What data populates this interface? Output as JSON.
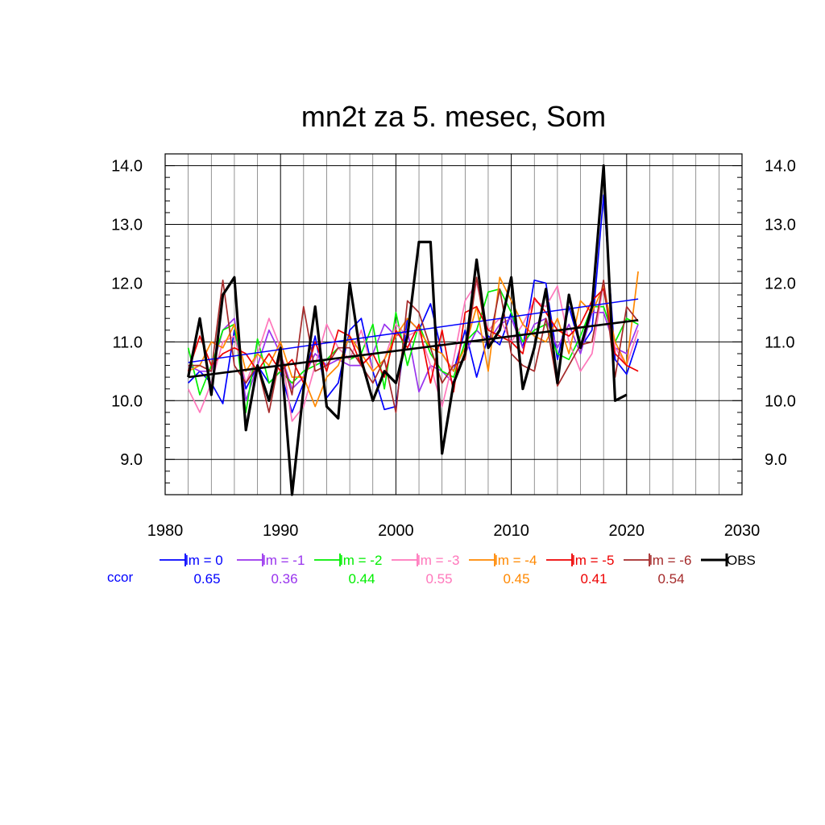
{
  "chart_data": {
    "type": "line",
    "title": "mn2t za 5. mesec, Som",
    "xlim": [
      1980,
      2030
    ],
    "ylim": [
      8.4,
      14.2
    ],
    "x_ticks": [
      "1980",
      "1990",
      "2000",
      "2010",
      "2020",
      "2030"
    ],
    "y_ticks": [
      "9.0",
      "10.0",
      "11.0",
      "12.0",
      "13.0",
      "14.0"
    ],
    "grid": true,
    "legend_position": "bottom",
    "ccor_label": "ccor",
    "series": [
      {
        "name": "lm = 0",
        "color": "#0000ff",
        "ccor": "0.65",
        "x": [
          1982,
          1983,
          1984,
          1985,
          1986,
          1987,
          1988,
          1989,
          1990,
          1991,
          1992,
          1993,
          1994,
          1995,
          1996,
          1997,
          1998,
          1999,
          2000,
          2001,
          2002,
          2003,
          2004,
          2005,
          2006,
          2007,
          2008,
          2009,
          2010,
          2011,
          2012,
          2013,
          2014,
          2015,
          2016,
          2017,
          2018,
          2019,
          2020,
          2021
        ],
        "y": [
          10.3,
          10.5,
          10.3,
          9.95,
          11.2,
          10.2,
          10.6,
          10.3,
          10.5,
          9.8,
          10.3,
          11.1,
          10.05,
          10.3,
          11.2,
          11.4,
          10.5,
          9.85,
          9.9,
          11.4,
          11.2,
          11.65,
          10.8,
          10.5,
          11.2,
          10.4,
          11.1,
          10.95,
          11.5,
          10.9,
          12.05,
          12.0,
          10.7,
          11.6,
          10.9,
          11.2,
          13.5,
          10.7,
          10.45,
          11.05
        ],
        "trend": [
          10.65,
          11.73
        ]
      },
      {
        "name": "lm = -1",
        "color": "#9933ee",
        "ccor": "0.36",
        "x": [
          1982,
          1983,
          1984,
          1985,
          1986,
          1987,
          1988,
          1989,
          1990,
          1991,
          1992,
          1993,
          1994,
          1995,
          1996,
          1997,
          1998,
          1999,
          2000,
          2001,
          2002,
          2003,
          2004,
          2005,
          2006,
          2007,
          2008,
          2009,
          2010,
          2011,
          2012,
          2013,
          2014,
          2015,
          2016,
          2017,
          2018,
          2019,
          2020,
          2021
        ],
        "y": [
          10.6,
          10.5,
          10.5,
          11.2,
          11.4,
          10.0,
          10.6,
          11.2,
          10.8,
          10.2,
          10.4,
          10.8,
          10.6,
          10.7,
          10.6,
          10.6,
          10.8,
          11.3,
          11.1,
          11.2,
          10.15,
          10.6,
          10.5,
          10.3,
          10.8,
          11.2,
          11.0,
          11.3,
          11.4,
          10.9,
          11.3,
          11.4,
          10.9,
          11.3,
          10.8,
          11.5,
          11.5,
          10.9,
          10.8,
          11.3
        ]
      },
      {
        "name": "lm = -2",
        "color": "#00ee00",
        "ccor": "0.44",
        "x": [
          1982,
          1983,
          1984,
          1985,
          1986,
          1987,
          1988,
          1989,
          1990,
          1991,
          1992,
          1993,
          1994,
          1995,
          1996,
          1997,
          1998,
          1999,
          2000,
          2001,
          2002,
          2003,
          2004,
          2005,
          2006,
          2007,
          2008,
          2009,
          2010,
          2011,
          2012,
          2013,
          2014,
          2015,
          2016,
          2017,
          2018,
          2019,
          2020,
          2021
        ],
        "y": [
          10.9,
          10.1,
          10.6,
          11.2,
          11.3,
          9.8,
          11.05,
          10.3,
          10.5,
          10.3,
          10.5,
          10.6,
          10.7,
          10.9,
          10.7,
          10.8,
          11.3,
          10.2,
          11.5,
          10.6,
          11.3,
          10.8,
          10.5,
          10.4,
          11.0,
          11.2,
          11.85,
          11.9,
          11.5,
          11.0,
          11.2,
          11.3,
          10.8,
          10.7,
          11.1,
          11.6,
          11.6,
          11.0,
          11.4,
          11.3
        ]
      },
      {
        "name": "lm = -3",
        "color": "#ff77bb",
        "ccor": "0.55",
        "x": [
          1982,
          1983,
          1984,
          1985,
          1986,
          1987,
          1988,
          1989,
          1990,
          1991,
          1992,
          1993,
          1994,
          1995,
          1996,
          1997,
          1998,
          1999,
          2000,
          2001,
          2002,
          2003,
          2004,
          2005,
          2006,
          2007,
          2008,
          2009,
          2010,
          2011,
          2012,
          2013,
          2014,
          2015,
          2016,
          2017,
          2018,
          2019,
          2020,
          2021
        ],
        "y": [
          10.2,
          9.8,
          10.3,
          11.0,
          11.1,
          10.3,
          10.8,
          11.4,
          10.9,
          9.65,
          9.9,
          10.6,
          11.3,
          10.9,
          10.7,
          11.2,
          10.5,
          10.7,
          11.3,
          11.1,
          11.2,
          10.6,
          9.9,
          10.7,
          11.7,
          12.0,
          11.2,
          11.4,
          11.0,
          11.3,
          11.7,
          11.6,
          11.95,
          11.0,
          10.5,
          10.8,
          12.0,
          10.9,
          10.6,
          11.2
        ]
      },
      {
        "name": "lm = -4",
        "color": "#ff8800",
        "ccor": "0.45",
        "x": [
          1982,
          1983,
          1984,
          1985,
          1986,
          1987,
          1988,
          1989,
          1990,
          1991,
          1992,
          1993,
          1994,
          1995,
          1996,
          1997,
          1998,
          1999,
          2000,
          2001,
          2002,
          2003,
          2004,
          2005,
          2006,
          2007,
          2008,
          2009,
          2010,
          2011,
          2012,
          2013,
          2014,
          2015,
          2016,
          2017,
          2018,
          2019,
          2020,
          2021
        ],
        "y": [
          10.5,
          10.6,
          11.0,
          10.9,
          11.3,
          10.5,
          10.8,
          10.6,
          11.0,
          10.4,
          10.4,
          9.9,
          10.4,
          10.6,
          11.1,
          10.8,
          10.5,
          10.7,
          11.1,
          11.4,
          11.2,
          10.9,
          10.8,
          10.5,
          10.9,
          11.6,
          10.5,
          12.1,
          11.7,
          11.3,
          11.1,
          11.0,
          11.4,
          10.8,
          11.7,
          11.5,
          11.95,
          11.0,
          10.6,
          12.2
        ]
      },
      {
        "name": "lm = -5",
        "color": "#ee0000",
        "ccor": "0.41",
        "x": [
          1982,
          1983,
          1984,
          1985,
          1986,
          1987,
          1988,
          1989,
          1990,
          1991,
          1992,
          1993,
          1994,
          1995,
          1996,
          1997,
          1998,
          1999,
          2000,
          2001,
          2002,
          2003,
          2004,
          2005,
          2006,
          2007,
          2008,
          2009,
          2010,
          2011,
          2012,
          2013,
          2014,
          2015,
          2016,
          2017,
          2018,
          2019,
          2020,
          2021
        ],
        "y": [
          10.5,
          11.1,
          10.6,
          10.8,
          10.9,
          10.8,
          10.5,
          10.8,
          10.5,
          10.7,
          10.3,
          11.0,
          10.5,
          11.2,
          11.1,
          10.6,
          10.8,
          10.4,
          11.2,
          10.9,
          11.3,
          10.3,
          11.2,
          10.15,
          11.5,
          11.6,
          11.2,
          11.1,
          11.0,
          10.8,
          11.75,
          11.5,
          11.2,
          11.1,
          11.3,
          11.7,
          11.9,
          10.8,
          10.6,
          10.5
        ]
      },
      {
        "name": "lm = -6",
        "color": "#a52a2a",
        "ccor": "0.54",
        "x": [
          1982,
          1983,
          1984,
          1985,
          1986,
          1987,
          1988,
          1989,
          1990,
          1991,
          1992,
          1993,
          1994,
          1995,
          1996,
          1997,
          1998,
          1999,
          2000,
          2001,
          2002,
          2003,
          2004,
          2005,
          2006,
          2007,
          2008,
          2009,
          2010,
          2011,
          2012,
          2013,
          2014,
          2015,
          2016,
          2017,
          2018,
          2019,
          2020,
          2021
        ],
        "y": [
          10.6,
          10.6,
          10.5,
          12.05,
          10.6,
          10.3,
          10.6,
          9.8,
          10.8,
          10.1,
          11.6,
          10.5,
          10.6,
          10.9,
          10.9,
          10.6,
          10.3,
          10.7,
          9.8,
          11.7,
          11.5,
          10.9,
          10.3,
          10.6,
          10.7,
          12.1,
          10.9,
          11.9,
          10.8,
          10.6,
          10.5,
          11.4,
          10.25,
          10.6,
          10.95,
          11.0,
          12.05,
          10.4,
          11.6,
          11.35
        ]
      },
      {
        "name": "OBS",
        "color": "#000000",
        "ccor": "",
        "x": [
          1982,
          1983,
          1984,
          1985,
          1986,
          1987,
          1988,
          1989,
          1990,
          1991,
          1992,
          1993,
          1994,
          1995,
          1996,
          1997,
          1998,
          1999,
          2000,
          2001,
          2002,
          2003,
          2004,
          2005,
          2006,
          2007,
          2008,
          2009,
          2010,
          2011,
          2012,
          2013,
          2014,
          2015,
          2016,
          2017,
          2018,
          2019,
          2020
        ],
        "y": [
          10.4,
          11.4,
          10.1,
          11.8,
          12.1,
          9.5,
          10.6,
          10.0,
          10.9,
          8.4,
          10.2,
          11.6,
          9.9,
          9.7,
          12.0,
          10.7,
          10.0,
          10.5,
          10.3,
          11.1,
          12.7,
          12.7,
          9.1,
          10.3,
          10.8,
          12.4,
          10.9,
          11.2,
          12.1,
          10.2,
          10.9,
          11.9,
          10.3,
          11.8,
          10.9,
          11.6,
          14.0,
          10.0,
          10.1
        ],
        "trend": [
          10.4,
          11.37
        ]
      }
    ]
  }
}
